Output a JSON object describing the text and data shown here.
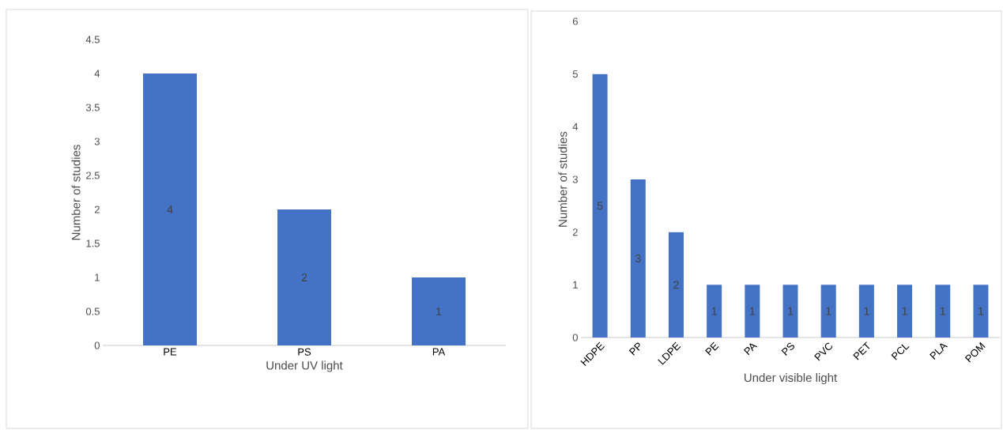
{
  "chart_data": [
    {
      "type": "bar",
      "categories": [
        "PE",
        "PS",
        "PA"
      ],
      "values": [
        4,
        2,
        1
      ],
      "color": "#4472c4",
      "ylim": [
        0,
        4.5
      ],
      "yticks": [
        0,
        0.5,
        1,
        1.5,
        2,
        2.5,
        3,
        3.5,
        4,
        4.5
      ],
      "xlabel": "Under UV light",
      "ylabel": "Number of studies",
      "data_labels": true
    },
    {
      "type": "bar",
      "categories": [
        "HDPE",
        "PP",
        "LDPE",
        "PE",
        "PA",
        "PS",
        "PVC",
        "PET",
        "PCL",
        "PLA",
        "POM"
      ],
      "values": [
        5,
        3,
        2,
        1,
        1,
        1,
        1,
        1,
        1,
        1,
        1
      ],
      "color": "#4472c4",
      "ylim": [
        0,
        6
      ],
      "yticks": [
        0,
        1,
        2,
        3,
        4,
        5,
        6
      ],
      "xlabel": "Under visible light",
      "ylabel": "Number of studies",
      "data_labels": true
    }
  ]
}
